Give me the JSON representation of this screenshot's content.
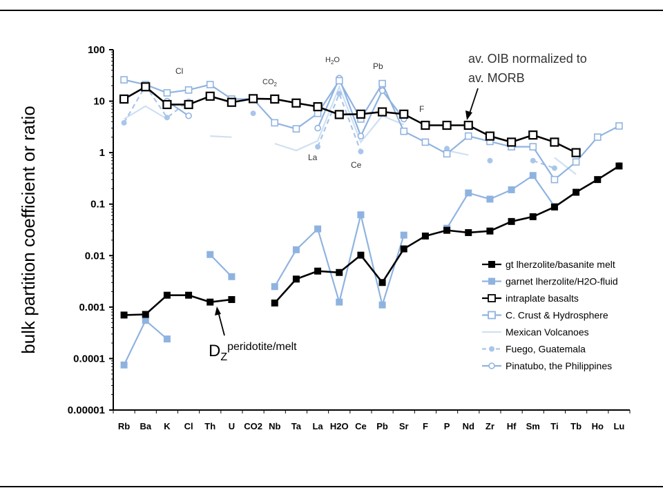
{
  "chart_data": {
    "type": "line",
    "ylabel": "bulk partition coefficient or ratio",
    "yscale": "log",
    "ylim": [
      1e-05,
      100
    ],
    "yticks": [
      "100",
      "10",
      "1",
      "0.1",
      "0.01",
      "0.001",
      "0.0001",
      "0.00001"
    ],
    "categories": [
      "Rb",
      "Ba",
      "K",
      "Cl",
      "Th",
      "U",
      "CO2",
      "Nb",
      "Ta",
      "La",
      "H2O",
      "Ce",
      "Pb",
      "Sr",
      "F",
      "P",
      "Nd",
      "Zr",
      "Hf",
      "Sm",
      "Ti",
      "Tb",
      "Ho",
      "Lu"
    ],
    "grid": false,
    "legend_position": "right",
    "series": [
      {
        "name": "gt lherzolite/basanite melt",
        "color": "#000000",
        "marker": "square-filled",
        "dash": false,
        "values": [
          0.0007,
          0.00072,
          0.0017,
          0.0017,
          0.00125,
          0.0014,
          null,
          0.0012,
          0.0035,
          0.005,
          0.0047,
          0.0102,
          0.003,
          0.0135,
          0.024,
          0.031,
          0.028,
          0.03,
          0.046,
          0.057,
          0.088,
          0.17,
          0.3,
          0.55
        ]
      },
      {
        "name": "garnet lherzolite/H2O-fluid",
        "color": "#8fb3e0",
        "marker": "square-filled",
        "dash": false,
        "values": [
          7.5e-05,
          0.00055,
          0.00024,
          null,
          0.0105,
          0.0039,
          null,
          0.0025,
          0.013,
          0.033,
          0.00125,
          0.062,
          0.0011,
          0.025,
          null,
          0.034,
          0.165,
          0.125,
          0.19,
          0.36,
          0.09,
          null,
          null,
          null
        ]
      },
      {
        "name": "intraplate basalts",
        "color": "#000000",
        "marker": "square-open",
        "dash": false,
        "values": [
          11,
          19,
          8.6,
          8.6,
          12.5,
          9.5,
          11.2,
          11,
          9.2,
          7.8,
          5.5,
          5.6,
          6.2,
          5.6,
          3.4,
          3.4,
          3.4,
          2.1,
          1.6,
          2.2,
          1.6,
          1.0,
          null,
          null
        ]
      },
      {
        "name": "C. Crust & Hydrosphere",
        "color": "#8fb3e0",
        "marker": "square-open",
        "dash": false,
        "values": [
          26,
          21,
          14.5,
          16.5,
          21,
          11,
          11,
          3.8,
          2.9,
          5.8,
          25,
          4.5,
          22,
          2.6,
          1.6,
          0.95,
          2.1,
          1.65,
          1.3,
          1.3,
          0.3,
          0.66,
          2.0,
          3.3
        ]
      },
      {
        "name": "Mexican Volcanoes",
        "color": "#cfe0f3",
        "marker": "none",
        "dash": false,
        "values": [
          4.5,
          8,
          4.5,
          null,
          2.1,
          2.0,
          null,
          1.5,
          1.1,
          1.7,
          19,
          1.6,
          5.2,
          3.5,
          null,
          1.1,
          0.9,
          null,
          null,
          null,
          0.8,
          0.38,
          null,
          null
        ]
      },
      {
        "name": "Fuego, Guatemala",
        "color": "#a9c6ea",
        "marker": "circle-filled",
        "dash": true,
        "values": [
          3.8,
          20,
          4.8,
          10,
          null,
          null,
          5.8,
          null,
          null,
          1.3,
          14,
          1.05,
          null,
          null,
          null,
          1.2,
          null,
          0.7,
          null,
          0.7,
          0.5,
          null,
          null,
          0.58
        ]
      },
      {
        "name": "Pinatubo, the Philippines",
        "color": "#8fb3e0",
        "marker": "circle-open",
        "dash": false,
        "values": [
          null,
          null,
          10,
          5.2,
          null,
          null,
          null,
          null,
          null,
          3.0,
          28,
          2.1,
          16,
          4.5,
          null,
          null,
          null,
          null,
          null,
          null,
          0.3,
          null,
          null,
          null
        ]
      }
    ],
    "annotations": [
      {
        "text": "av. OIB normalized to",
        "anchor": "Nd"
      },
      {
        "text": "av. MORB",
        "anchor": "Nd"
      },
      {
        "text": "peridotite/melt",
        "base": "D",
        "subscript": "Z",
        "anchor": "U"
      },
      {
        "text": "Cl"
      },
      {
        "text": "CO",
        "subscript": "2"
      },
      {
        "text": "H",
        "subscript": "2",
        "suffix": "O"
      },
      {
        "text": "Pb"
      },
      {
        "text": "F"
      },
      {
        "text": "La"
      },
      {
        "text": "Ce"
      }
    ]
  }
}
